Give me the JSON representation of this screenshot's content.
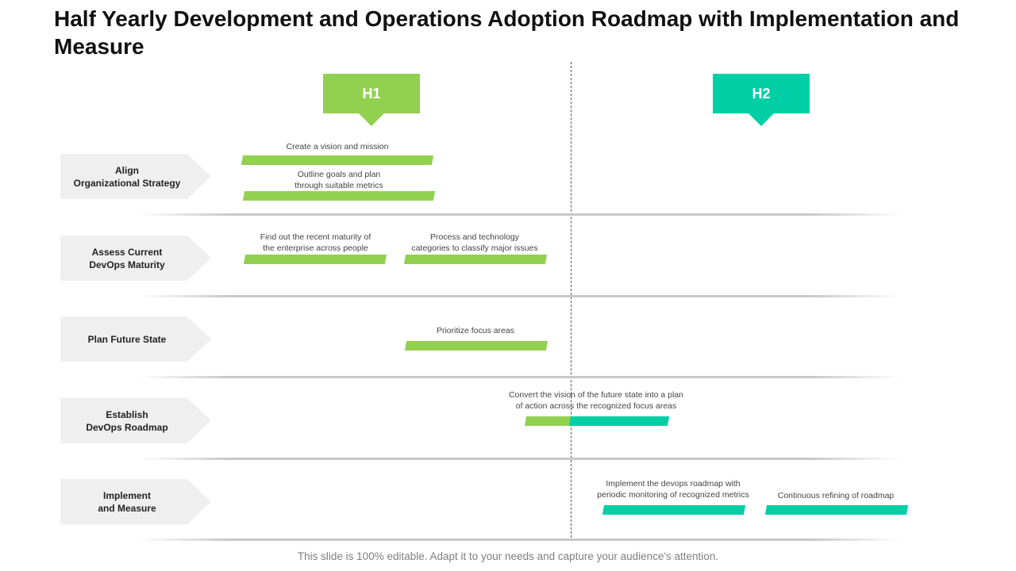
{
  "title": "Half Yearly Development and Operations Adoption Roadmap with Implementation and Measure",
  "phases": [
    {
      "label": "H1",
      "color": "#92d050"
    },
    {
      "label": "H2",
      "color": "#00cfa6"
    }
  ],
  "rows": [
    {
      "label": "Align\nOrganizational Strategy"
    },
    {
      "label": "Assess Current\nDevOps Maturity"
    },
    {
      "label": "Plan Future State"
    },
    {
      "label": "Establish\nDevOps Roadmap"
    },
    {
      "label": "Implement\nand Measure"
    }
  ],
  "tasks": [
    {
      "text": "Create a vision and mission"
    },
    {
      "text": "Outline goals and plan\nthrough suitable metrics"
    },
    {
      "text": "Find out the recent maturity of\nthe enterprise across people"
    },
    {
      "text": "Process and technology\ncategories to classify major issues"
    },
    {
      "text": "Prioritize focus areas"
    },
    {
      "text": "Convert the vision of the future state into a plan\nof action across the recognized focus areas"
    },
    {
      "text": "Implement the devops roadmap with\nperiodic monitoring of recognized metrics"
    },
    {
      "text": "Continuous refining of roadmap"
    }
  ],
  "footer": "This slide is 100% editable. Adapt it to your needs and capture your audience's attention."
}
